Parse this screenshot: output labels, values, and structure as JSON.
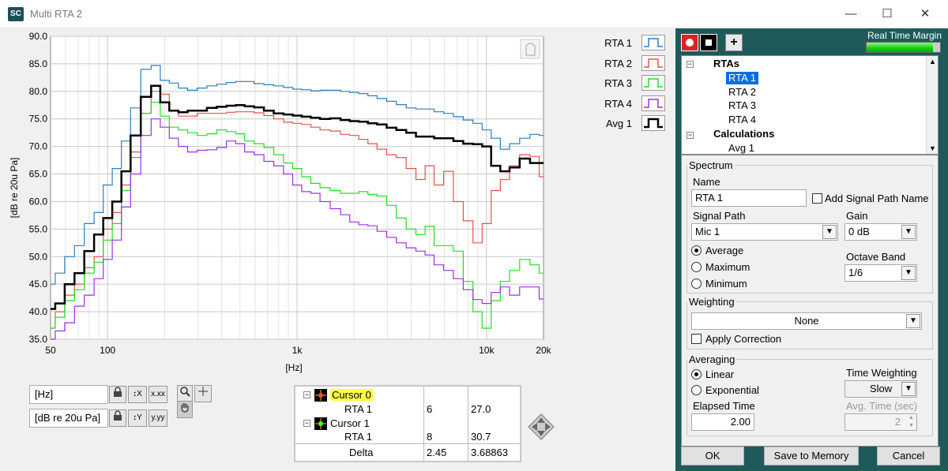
{
  "window": {
    "title": "Multi RTA 2",
    "logo": "SC",
    "minimize_icon": "—",
    "maximize_icon": "☐",
    "close_icon": "✕"
  },
  "legend": [
    {
      "label": "RTA 1",
      "color": "#2a7fc0"
    },
    {
      "label": "RTA 2",
      "color": "#e8524a"
    },
    {
      "label": "RTA 3",
      "color": "#1ee01e"
    },
    {
      "label": "RTA 4",
      "color": "#9b30e8"
    },
    {
      "label": "Avg 1",
      "color": "#000000"
    }
  ],
  "chart_data": {
    "type": "line",
    "title": "",
    "xlabel": "[Hz]",
    "ylabel": "[dB re 20u Pa]",
    "xscale": "log",
    "xlim": [
      50,
      20000
    ],
    "ylim": [
      35,
      90
    ],
    "xticks": [
      50,
      100,
      1000,
      10000,
      20000
    ],
    "xtick_labels": [
      "50",
      "100",
      "1k",
      "10k",
      "20k"
    ],
    "yticks": [
      35,
      40,
      45,
      50,
      55,
      60,
      65,
      70,
      75,
      80,
      85,
      90
    ],
    "ytick_labels": [
      "35.0",
      "40.0",
      "45.0",
      "50.0",
      "55.0",
      "60.0",
      "65.0",
      "70.0",
      "75.0",
      "80.0",
      "85.0",
      "90.0"
    ],
    "grid": true,
    "x": [
      50,
      56,
      63,
      71,
      80,
      90,
      100,
      112,
      125,
      140,
      160,
      180,
      200,
      224,
      250,
      280,
      315,
      355,
      400,
      450,
      500,
      560,
      630,
      710,
      800,
      900,
      1000,
      1120,
      1250,
      1400,
      1600,
      1800,
      2000,
      2240,
      2500,
      2800,
      3150,
      3550,
      4000,
      4500,
      5000,
      5600,
      6300,
      7100,
      8000,
      9000,
      10000,
      11200,
      12500,
      14000,
      16000,
      18000,
      20000
    ],
    "series": [
      {
        "name": "RTA 1",
        "color": "#2a7fc0",
        "values": [
          45,
          47,
          50,
          52,
          56,
          58,
          63,
          66,
          71,
          77,
          84,
          84.7,
          82,
          81.5,
          80.6,
          80.2,
          80.6,
          81,
          81.3,
          81.6,
          81.8,
          81.8,
          81.4,
          81.2,
          81,
          80.7,
          80.4,
          80.3,
          80.1,
          80.2,
          80.2,
          80,
          79.8,
          79.6,
          79.2,
          78.7,
          78.2,
          77.6,
          77,
          76.8,
          76.8,
          76.3,
          76,
          75.4,
          74.8,
          74.2,
          73,
          71.5,
          69.5,
          70.5,
          71.5,
          72.2,
          72
        ]
      },
      {
        "name": "RTA 2",
        "color": "#e8524a",
        "values": [
          37,
          40,
          43,
          45,
          48,
          50,
          55,
          58,
          63,
          69,
          76,
          80,
          79.5,
          76.5,
          75.5,
          75.5,
          76,
          76,
          76,
          76.2,
          76.3,
          76.3,
          76.1,
          75.6,
          75,
          74.4,
          74.2,
          74,
          73.5,
          73,
          72.8,
          72.2,
          72,
          71.3,
          70.5,
          69.5,
          68.5,
          68,
          66,
          64,
          66.5,
          63,
          65.5,
          60,
          56.5,
          52.5,
          56,
          62,
          64,
          66.5,
          68.5,
          68.2,
          64.5
        ]
      },
      {
        "name": "RTA 3",
        "color": "#1ee01e",
        "values": [
          37,
          39,
          42,
          44,
          47,
          49,
          53,
          56,
          62,
          68,
          76,
          78,
          75.5,
          73.5,
          73,
          72.5,
          72,
          72.3,
          73,
          72.7,
          72.3,
          71,
          70.5,
          69.8,
          68.5,
          67,
          66,
          64.5,
          63.3,
          62.5,
          62,
          61.5,
          61.5,
          61.8,
          61.3,
          61,
          59.3,
          57,
          55,
          54,
          55.5,
          52,
          52,
          51,
          45.5,
          40,
          37,
          42,
          45.5,
          47.5,
          49.5,
          48.5,
          47
        ]
      },
      {
        "name": "RTA 4",
        "color": "#9b30e8",
        "values": [
          35,
          36.5,
          38,
          41,
          43,
          46,
          49.5,
          53,
          59,
          65,
          72,
          75,
          73.5,
          71.5,
          70,
          69,
          69.3,
          69.4,
          69.8,
          71,
          70.5,
          69,
          68.5,
          67.3,
          66.5,
          65,
          63,
          61.8,
          61.5,
          60,
          58.7,
          57.6,
          56.3,
          55.8,
          55.6,
          54.6,
          53.5,
          52.5,
          51.6,
          51,
          50.3,
          48.5,
          47.5,
          46,
          44,
          42.2,
          41.5,
          43.5,
          44.5,
          43,
          44.5,
          44.5,
          42.3
        ]
      },
      {
        "name": "Avg 1",
        "color": "#000000",
        "values": [
          40.5,
          41.5,
          45,
          47,
          51,
          54,
          57,
          60,
          65.5,
          72,
          79,
          81,
          78,
          76.5,
          76.2,
          76.5,
          76.5,
          77,
          77.2,
          77.4,
          77.5,
          77.3,
          77.1,
          76.5,
          76,
          75.8,
          75.6,
          75.4,
          75.2,
          75,
          75.1,
          74.8,
          74.6,
          74.5,
          74.2,
          74,
          73.4,
          73,
          72.5,
          71.8,
          71.8,
          71.5,
          71.5,
          71,
          70.5,
          70.4,
          70,
          66.5,
          65.5,
          66.2,
          67.8,
          67,
          67
        ]
      }
    ]
  },
  "axis_controls": [
    {
      "unit": "[Hz]",
      "lock_icon": "🔒",
      "scale_label": "↕X",
      "format_label": "x.xx"
    },
    {
      "unit": "[dB re 20u Pa]",
      "lock_icon": "🔒",
      "scale_label": "↕Y",
      "format_label": "y.yy"
    }
  ],
  "cursor_table": {
    "rows": [
      {
        "name": "Cursor 0",
        "sub": "RTA 1",
        "x": "6",
        "y": "27.0"
      },
      {
        "name": "Cursor 1",
        "sub": "RTA 1",
        "x": "8",
        "y": "30.7"
      }
    ],
    "delta_label": "Delta",
    "delta_x": "2.45",
    "delta_y": "3.68863"
  },
  "panel": {
    "real_time_margin_label": "Real Time Margin",
    "real_time_margin": 0.9,
    "add_icon": "+",
    "tree": {
      "group1": "RTAs",
      "items": [
        "RTA 1",
        "RTA 2",
        "RTA 3",
        "RTA 4"
      ],
      "selected": "RTA 1",
      "group2": "Calculations",
      "calc_items": [
        "Avg 1"
      ]
    },
    "spectrum": {
      "legend": "Spectrum",
      "name_label": "Name",
      "name_value": "RTA 1",
      "add_signal_path_label": "Add Signal Path Name",
      "signal_path_label": "Signal Path",
      "signal_path_value": "Mic 1",
      "gain_label": "Gain",
      "gain_value": "0 dB",
      "modes": [
        "Average",
        "Maximum",
        "Minimum"
      ],
      "selected_mode": "Average",
      "octave_band_label": "Octave Band",
      "octave_band_value": "1/6"
    },
    "weighting": {
      "legend": "Weighting",
      "value": "None",
      "apply_correction_label": "Apply Correction"
    },
    "averaging": {
      "legend": "Averaging",
      "modes": [
        "Linear",
        "Exponential"
      ],
      "selected_mode": "Linear",
      "time_weighting_label": "Time Weighting",
      "time_weighting_value": "Slow",
      "elapsed_time_label": "Elapsed Time",
      "elapsed_time_value": "2.00",
      "avg_time_label": "Avg. Time (sec)",
      "avg_time_value": "2"
    },
    "buttons": {
      "ok": "OK",
      "save": "Save to Memory",
      "cancel": "Cancel"
    }
  }
}
